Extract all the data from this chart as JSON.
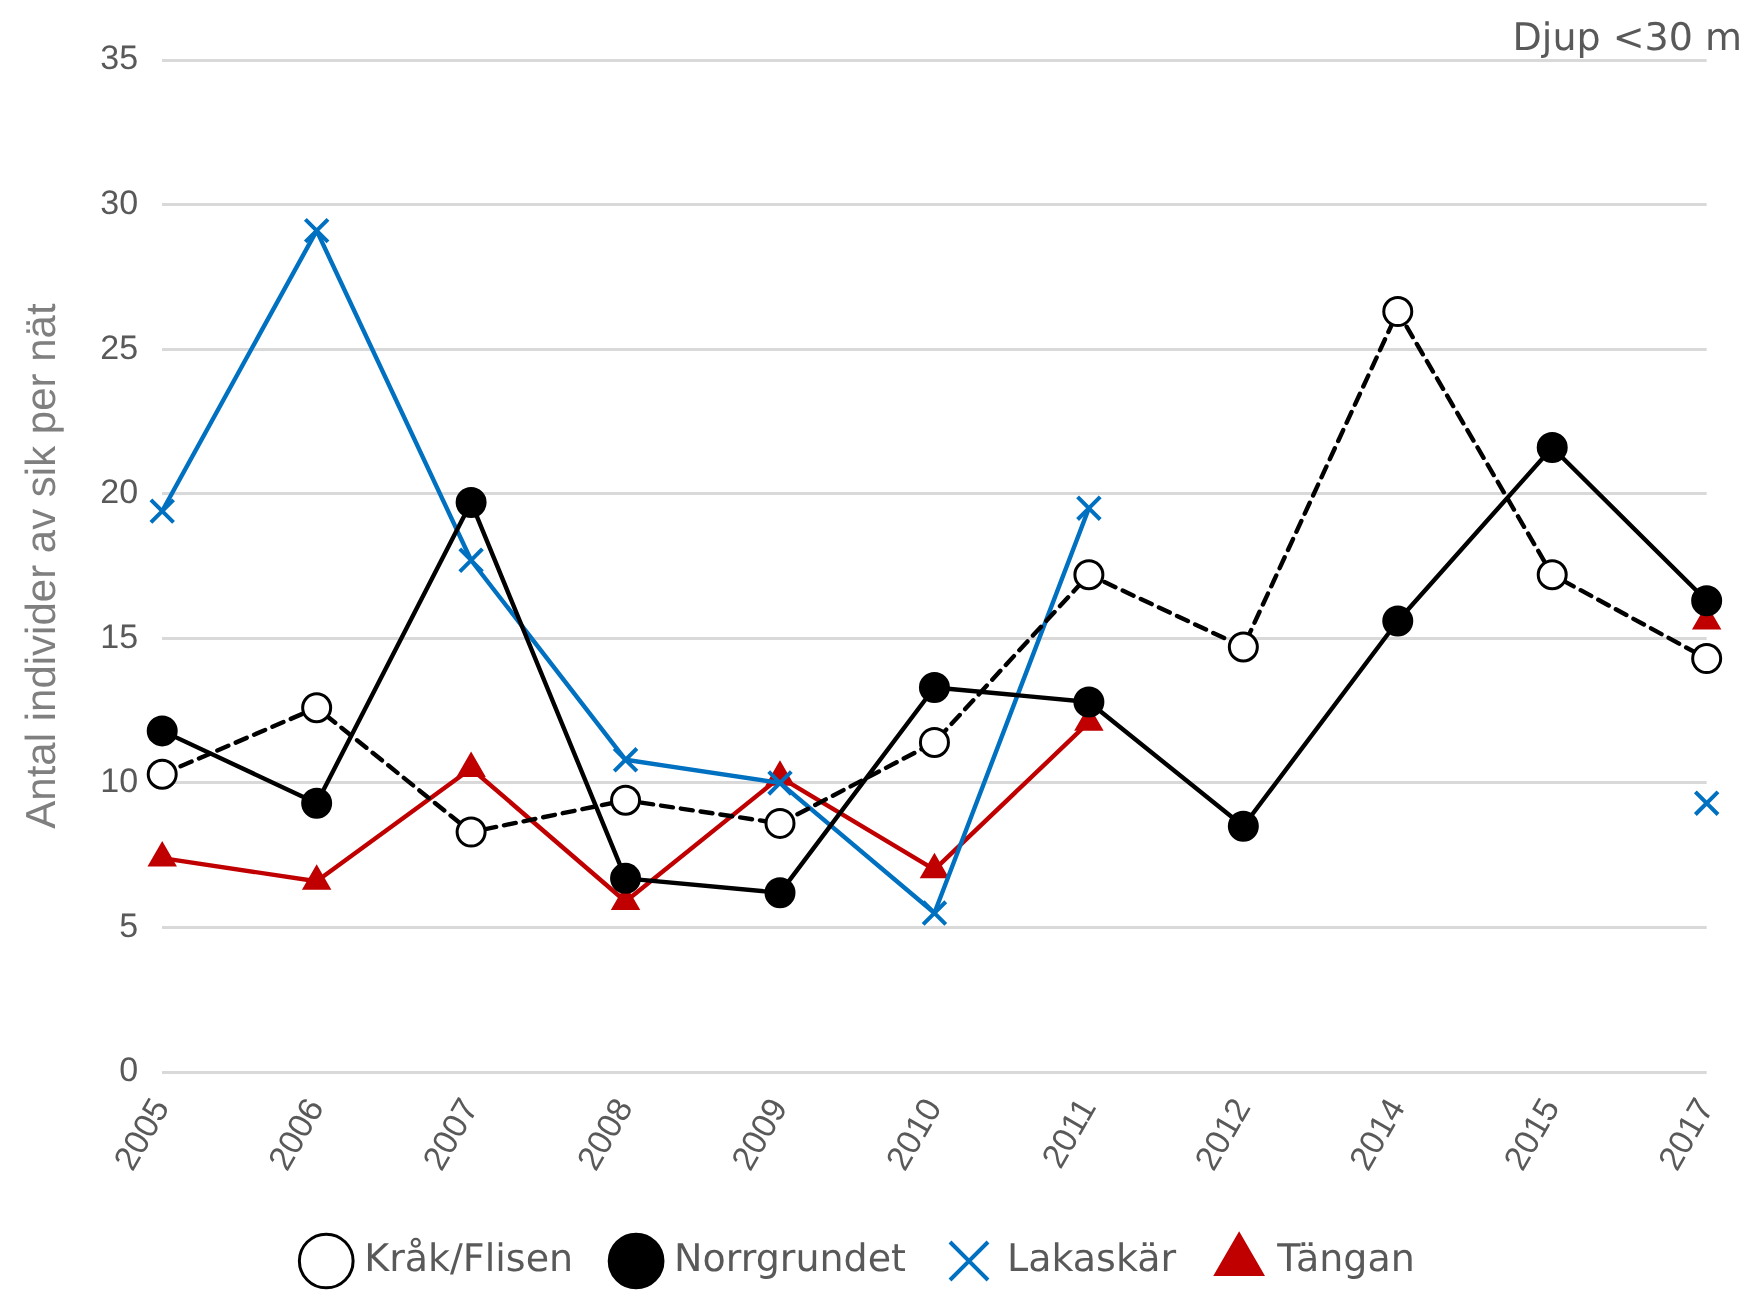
{
  "chart_data": {
    "type": "line",
    "ylabel": "Antal individer av sik per nät",
    "categories": [
      "2005",
      "2006",
      "2007",
      "2008",
      "2009",
      "2010",
      "2011",
      "2012",
      "2014",
      "2015",
      "2017"
    ],
    "series": [
      {
        "name": "Kråk/Flisen",
        "color": "#000000",
        "marker": "circle",
        "line_style": "dashed",
        "values": [
          10.3,
          12.6,
          8.3,
          9.4,
          8.6,
          11.4,
          17.2,
          14.7,
          26.3,
          17.2,
          14.3
        ]
      },
      {
        "name": "Norrgrundet",
        "color": "#000000",
        "marker": "circle",
        "line_style": "solid",
        "values": [
          11.8,
          9.3,
          19.7,
          6.7,
          6.2,
          13.3,
          12.8,
          8.5,
          15.6,
          21.6,
          16.3
        ]
      },
      {
        "name": "Lakaskär",
        "color": "#0070c0",
        "marker": "cross",
        "line_style": "solid",
        "values": [
          19.4,
          29.1,
          17.7,
          10.8,
          10.0,
          5.5,
          19.5,
          null,
          null,
          null,
          9.3
        ]
      },
      {
        "name": "Tängan",
        "color": "#c00000",
        "marker": "triangle",
        "line_style": "solid",
        "values": [
          7.4,
          6.6,
          10.5,
          5.9,
          10.2,
          7.0,
          12.1,
          null,
          null,
          null,
          15.6
        ]
      }
    ],
    "ylim": [
      0,
      35
    ],
    "yticks": [
      0,
      5,
      10,
      15,
      20,
      25,
      30,
      35
    ],
    "grid": "y",
    "legend": "bottom",
    "annotations": [
      "Djup <30 m"
    ]
  }
}
